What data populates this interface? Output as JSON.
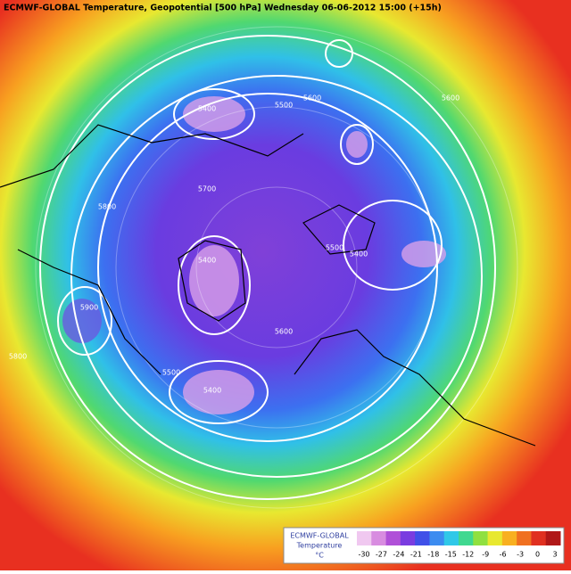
{
  "header": {
    "title": "ECMWF-GLOBAL Temperature, Geopotential [500 hPa] Wednesday 06-06-2012 15:00 (+15h)"
  },
  "contour_labels": [
    "5400",
    "5500",
    "5600",
    "5700",
    "5800",
    "5400",
    "5500",
    "5400",
    "5600",
    "5400",
    "5500",
    "5600",
    "5800",
    "5900"
  ],
  "legend": {
    "title": "ECMWF-GLOBAL",
    "variable": "Temperature",
    "unit": "°C",
    "ticks": [
      -30,
      -27,
      -24,
      -21,
      -18,
      -15,
      -12,
      -9,
      -6,
      -3,
      0,
      3
    ],
    "colors": [
      "#f0c8f0",
      "#d88ce0",
      "#b050d8",
      "#7a3ce0",
      "#4050e8",
      "#3c8cf0",
      "#30c8e8",
      "#40d890",
      "#90e040",
      "#e8e830",
      "#f8b020",
      "#f07020",
      "#e03020",
      "#b01818"
    ]
  }
}
